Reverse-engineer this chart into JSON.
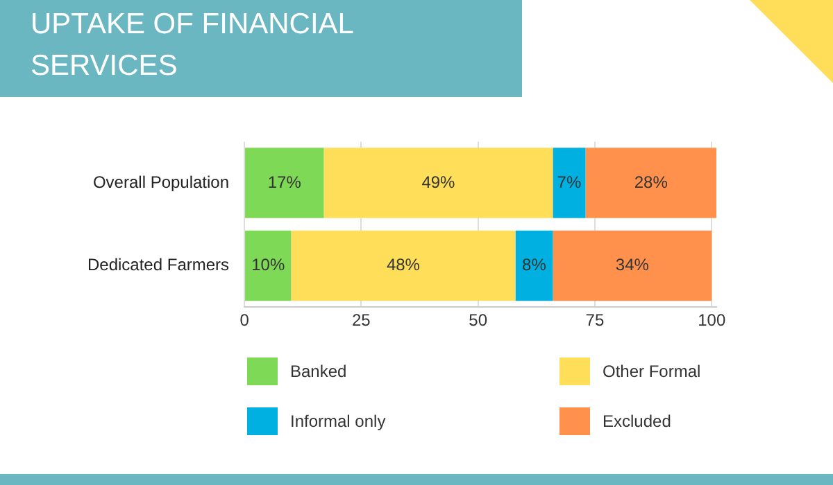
{
  "chart_data": {
    "type": "bar",
    "title": "UPTAKE OF FINANCIAL SERVICES",
    "orientation": "horizontal",
    "stacked": true,
    "categories": [
      "Overall Population",
      "Dedicated Farmers"
    ],
    "series": [
      {
        "name": "Banked",
        "color": "#7ed957",
        "values": [
          17,
          10
        ],
        "value_labels": [
          "17%",
          "10%"
        ]
      },
      {
        "name": "Other Formal",
        "color": "#ffde59",
        "values": [
          49,
          48
        ],
        "value_labels": [
          "49%",
          "48%"
        ]
      },
      {
        "name": "Informal only",
        "color": "#00b0e0",
        "values": [
          7,
          8
        ],
        "value_labels": [
          "7%",
          "8%"
        ]
      },
      {
        "name": "Excluded",
        "color": "#ff914d",
        "values": [
          28,
          34
        ],
        "value_labels": [
          "28%",
          "34%"
        ]
      }
    ],
    "xlim": [
      0,
      101
    ],
    "xticks": [
      0,
      25,
      50,
      75,
      100
    ],
    "grid": "x",
    "legend": "bottom"
  }
}
